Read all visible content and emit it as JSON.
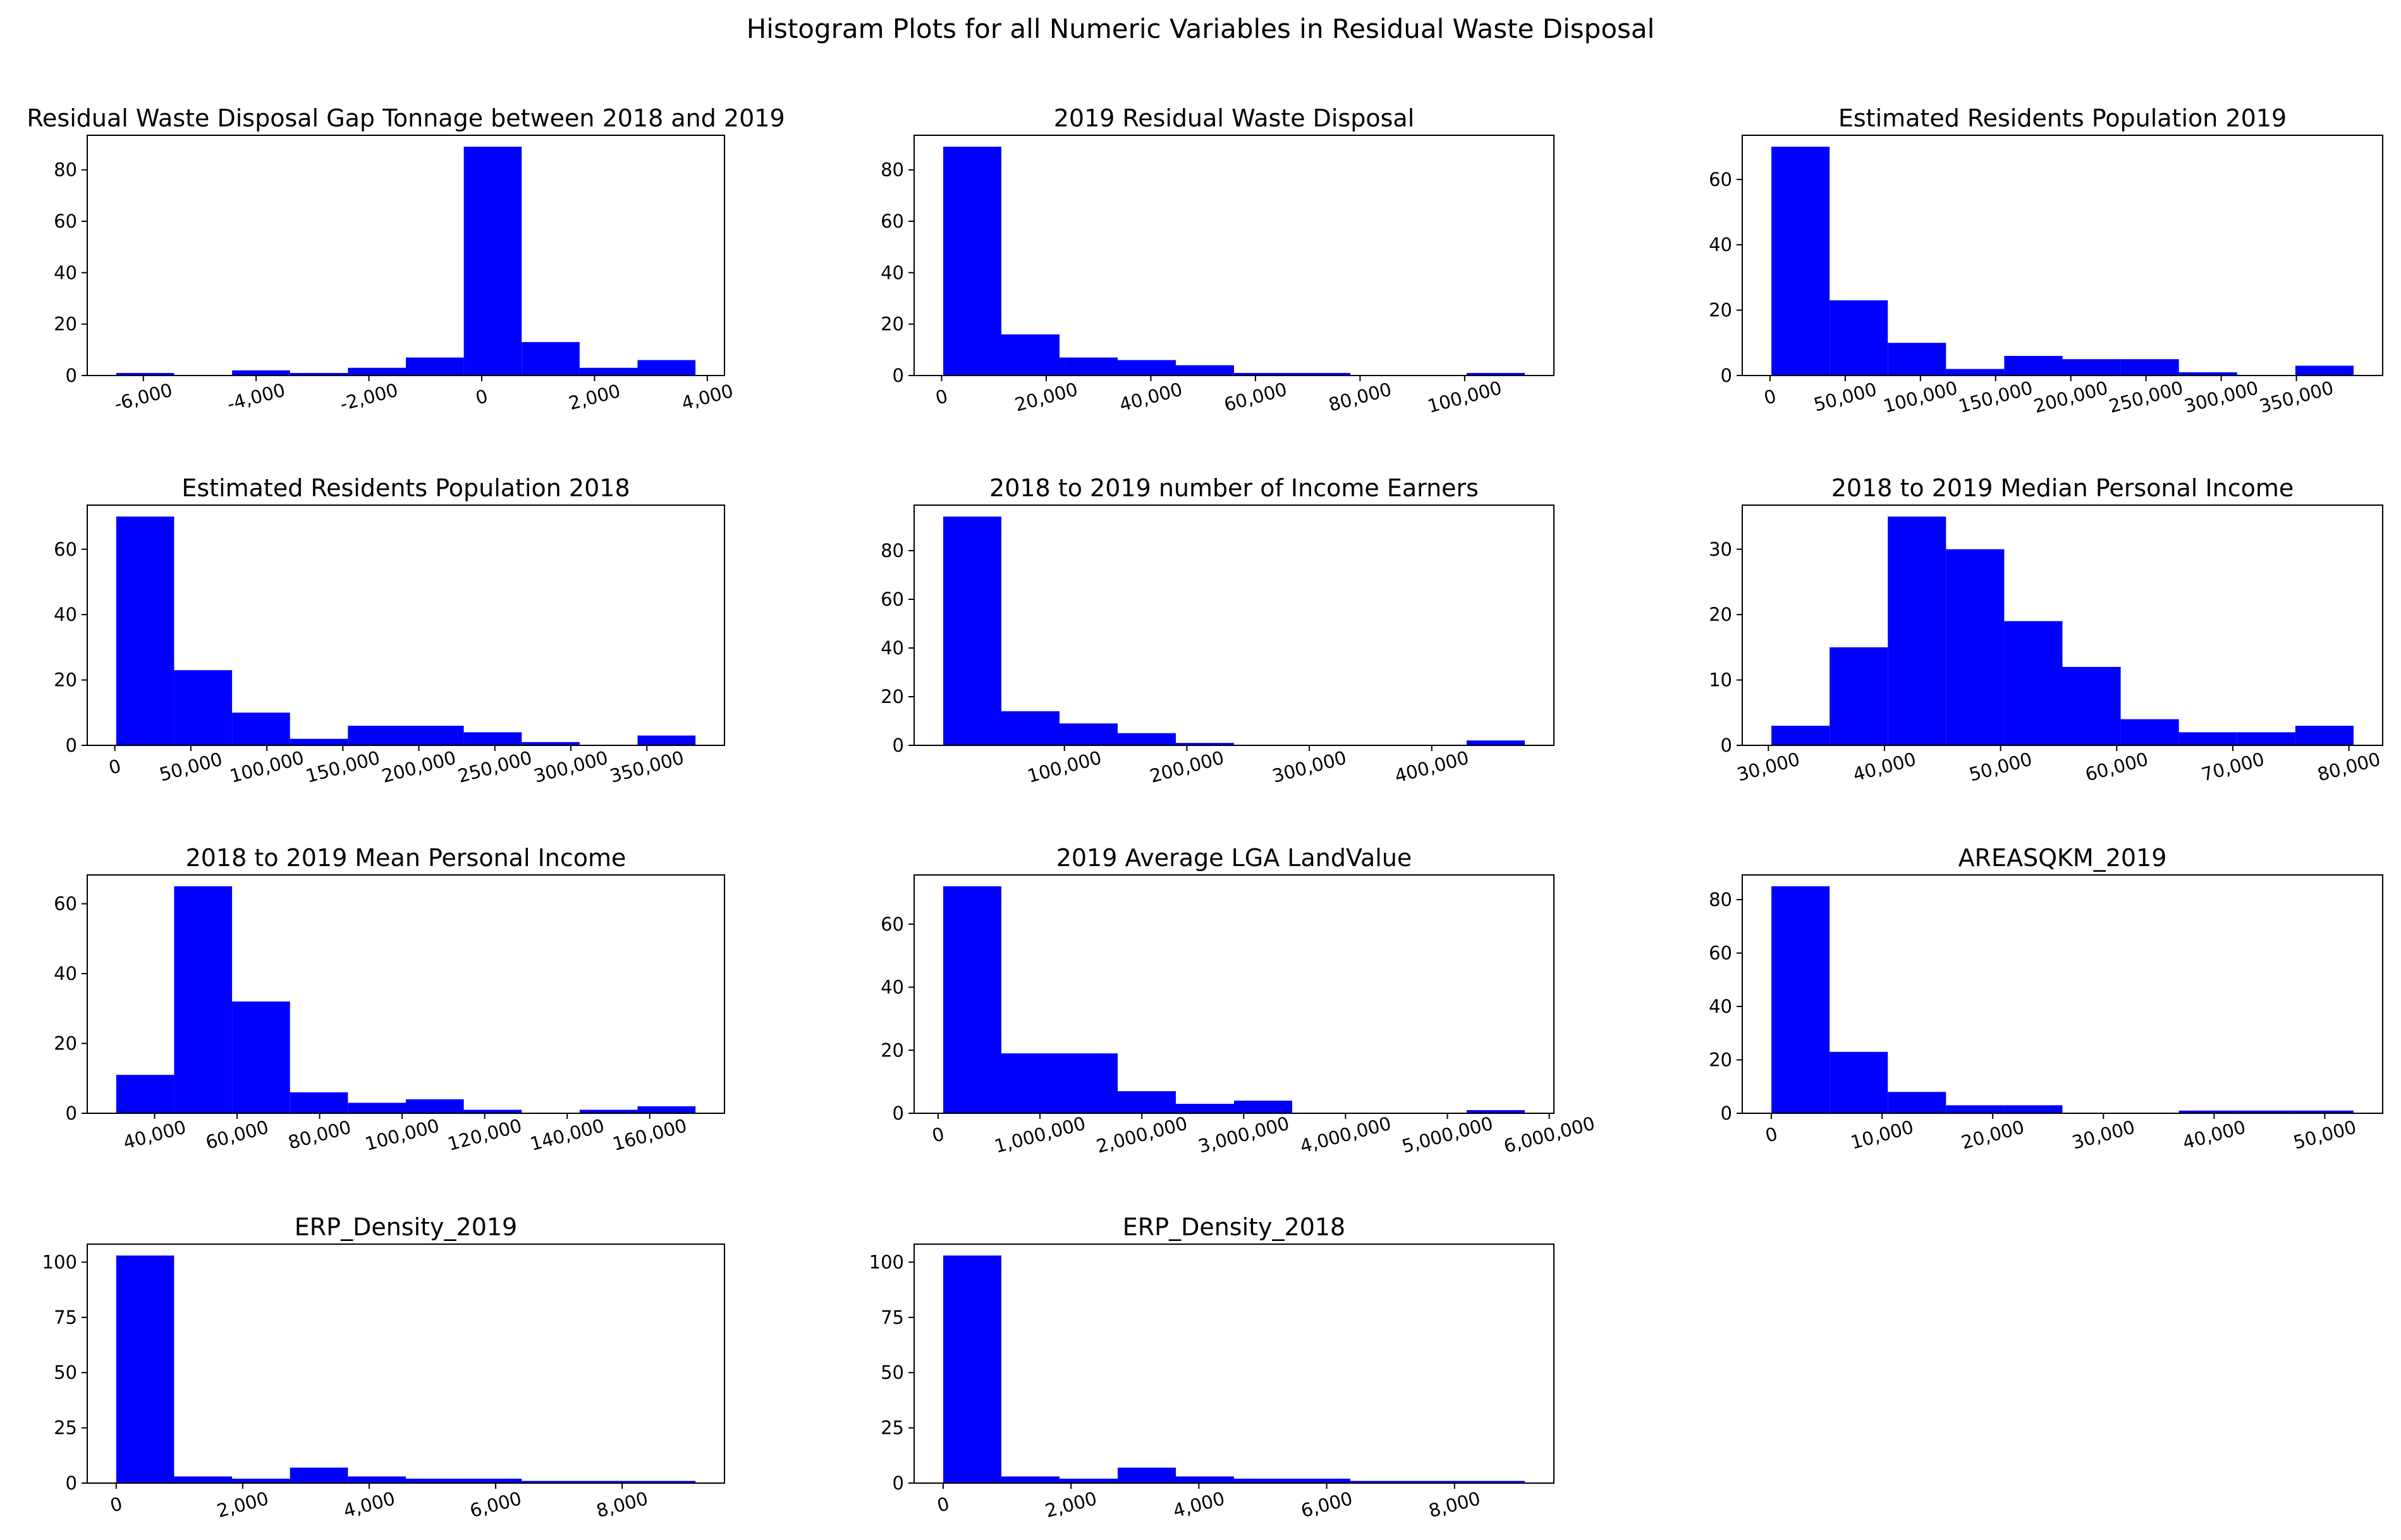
{
  "title": "Histogram Plots for all Numeric Variables in Residual Waste Disposal",
  "chart_data": [
    {
      "type": "histogram",
      "title": "Residual Waste Disposal Gap Tonnage between 2018 and 2019",
      "color": "#0000ff",
      "bins": [
        -6480,
        -5453,
        -4426,
        -3399,
        -2372,
        -1345,
        -318,
        709,
        1736,
        2763,
        3790
      ],
      "values": [
        1,
        0,
        2,
        1,
        3,
        7,
        89,
        13,
        3,
        6
      ],
      "xlim": [
        -6994,
        4304
      ],
      "ylim": [
        0,
        93.45
      ],
      "xticks": [
        {
          "value": -6000,
          "label": "-6,000"
        },
        {
          "value": -4000,
          "label": "-4,000"
        },
        {
          "value": -2000,
          "label": "-2,000"
        },
        0,
        {
          "value": 2000,
          "label": "2,000"
        },
        {
          "value": 4000,
          "label": "4,000"
        }
      ],
      "yticks": [
        0,
        20,
        40,
        60,
        80
      ]
    },
    {
      "type": "histogram",
      "title": "2019 Residual Waste Disposal",
      "color": "#0000ff",
      "bins": [
        300,
        11420,
        22540,
        33660,
        44780,
        55900,
        67020,
        78140,
        89260,
        100380,
        111500
      ],
      "values": [
        89,
        16,
        7,
        6,
        4,
        1,
        1,
        0,
        0,
        1
      ],
      "xlim": [
        -5260,
        117060
      ],
      "ylim": [
        0,
        93.45
      ],
      "xticks": [
        0,
        {
          "value": 20000,
          "label": "20,000"
        },
        {
          "value": 40000,
          "label": "40,000"
        },
        {
          "value": 60000,
          "label": "60,000"
        },
        {
          "value": 80000,
          "label": "80,000"
        },
        {
          "value": 100000,
          "label": "100,000"
        }
      ],
      "yticks": [
        0,
        20,
        40,
        60,
        80
      ]
    },
    {
      "type": "histogram",
      "title": "Estimated Residents Population 2019",
      "color": "#0000ff",
      "bins": [
        900,
        39610,
        78320,
        117030,
        155740,
        194450,
        233160,
        271870,
        310580,
        349290,
        388000
      ],
      "values": [
        70,
        23,
        10,
        2,
        6,
        5,
        5,
        1,
        0,
        3
      ],
      "xlim": [
        -18455,
        407355
      ],
      "ylim": [
        0,
        73.5
      ],
      "xticks": [
        0,
        {
          "value": 50000,
          "label": "50,000"
        },
        {
          "value": 100000,
          "label": "100,000"
        },
        {
          "value": 150000,
          "label": "150,000"
        },
        {
          "value": 200000,
          "label": "200,000"
        },
        {
          "value": 250000,
          "label": "250,000"
        },
        {
          "value": 300000,
          "label": "300,000"
        },
        {
          "value": 350000,
          "label": "350,000"
        }
      ],
      "yticks": [
        0,
        20,
        40,
        60
      ]
    },
    {
      "type": "histogram",
      "title": "Estimated Residents Population 2018",
      "color": "#0000ff",
      "bins": [
        900,
        39010,
        77120,
        115230,
        153340,
        191450,
        229560,
        267670,
        305780,
        343890,
        382000
      ],
      "values": [
        70,
        23,
        10,
        2,
        6,
        6,
        4,
        1,
        0,
        3
      ],
      "xlim": [
        -18155,
        401055
      ],
      "ylim": [
        0,
        73.5
      ],
      "xticks": [
        0,
        {
          "value": 50000,
          "label": "50,000"
        },
        {
          "value": 100000,
          "label": "100,000"
        },
        {
          "value": 150000,
          "label": "150,000"
        },
        {
          "value": 200000,
          "label": "200,000"
        },
        {
          "value": 250000,
          "label": "250,000"
        },
        {
          "value": 300000,
          "label": "300,000"
        },
        {
          "value": 350000,
          "label": "350,000"
        }
      ],
      "yticks": [
        0,
        20,
        40,
        60
      ]
    },
    {
      "type": "histogram",
      "title": "2018 to 2019 number of Income Earners",
      "color": "#0000ff",
      "bins": [
        1000,
        48500,
        96000,
        143500,
        191000,
        238500,
        286000,
        333500,
        381000,
        428500,
        476000
      ],
      "values": [
        94,
        14,
        9,
        5,
        1,
        0,
        0,
        0,
        0,
        2
      ],
      "xlim": [
        -22750,
        499750
      ],
      "ylim": [
        0,
        98.7
      ],
      "xticks": [
        {
          "value": 100000,
          "label": "100,000"
        },
        {
          "value": 200000,
          "label": "200,000"
        },
        {
          "value": 300000,
          "label": "300,000"
        },
        {
          "value": 400000,
          "label": "400,000"
        }
      ],
      "yticks": [
        0,
        20,
        40,
        60,
        80
      ]
    },
    {
      "type": "histogram",
      "title": "2018 to 2019 Median Personal Income",
      "color": "#0000ff",
      "bins": [
        30260,
        35274,
        40288,
        45302,
        50316,
        55330,
        60344,
        65358,
        70372,
        75386,
        80400
      ],
      "values": [
        3,
        15,
        35,
        30,
        19,
        12,
        4,
        2,
        2,
        3
      ],
      "xlim": [
        27753,
        82907
      ],
      "ylim": [
        0,
        36.75
      ],
      "xticks": [
        {
          "value": 30000,
          "label": "30,000"
        },
        {
          "value": 40000,
          "label": "40,000"
        },
        {
          "value": 50000,
          "label": "50,000"
        },
        {
          "value": 60000,
          "label": "60,000"
        },
        {
          "value": 70000,
          "label": "70,000"
        },
        {
          "value": 80000,
          "label": "80,000"
        }
      ],
      "yticks": [
        0,
        10,
        20,
        30
      ]
    },
    {
      "type": "histogram",
      "title": "2018 to 2019 Mean Personal Income",
      "color": "#0000ff",
      "bins": [
        30700,
        44740,
        58780,
        72820,
        86860,
        100900,
        114940,
        128980,
        143020,
        157060,
        171100
      ],
      "values": [
        11,
        65,
        32,
        6,
        3,
        4,
        1,
        0,
        1,
        2
      ],
      "xlim": [
        23680,
        178120
      ],
      "ylim": [
        0,
        68.25
      ],
      "xticks": [
        {
          "value": 40000,
          "label": "40,000"
        },
        {
          "value": 60000,
          "label": "60,000"
        },
        {
          "value": 80000,
          "label": "80,000"
        },
        {
          "value": 100000,
          "label": "100,000"
        },
        {
          "value": 120000,
          "label": "120,000"
        },
        {
          "value": 140000,
          "label": "140,000"
        },
        {
          "value": 160000,
          "label": "160,000"
        }
      ],
      "yticks": [
        0,
        20,
        40,
        60
      ]
    },
    {
      "type": "histogram",
      "title": "2019 Average LGA LandValue",
      "color": "#0000ff",
      "bins": [
        50000,
        621000,
        1192000,
        1763000,
        2334000,
        2905000,
        3476000,
        4047000,
        4618000,
        5189000,
        5760000
      ],
      "values": [
        72,
        19,
        19,
        7,
        3,
        4,
        0,
        0,
        0,
        1
      ],
      "xlim": [
        -235500,
        6045500
      ],
      "ylim": [
        0,
        75.6
      ],
      "xticks": [
        0,
        {
          "value": 1000000,
          "label": "1,000,000"
        },
        {
          "value": 2000000,
          "label": "2,000,000"
        },
        {
          "value": 3000000,
          "label": "3,000,000"
        },
        {
          "value": 4000000,
          "label": "4,000,000"
        },
        {
          "value": 5000000,
          "label": "5,000,000"
        },
        {
          "value": 6000000,
          "label": "6,000,000"
        }
      ],
      "yticks": [
        0,
        20,
        40,
        60
      ]
    },
    {
      "type": "histogram",
      "title": "AREASQKM_2019",
      "color": "#0000ff",
      "bins": [
        0,
        5260,
        10520,
        15780,
        21040,
        26300,
        31560,
        36820,
        42080,
        47340,
        52600
      ],
      "values": [
        85,
        23,
        8,
        3,
        3,
        0,
        0,
        1,
        1,
        1
      ],
      "xlim": [
        -2630,
        55230
      ],
      "ylim": [
        0,
        89.25
      ],
      "xticks": [
        0,
        {
          "value": 10000,
          "label": "10,000"
        },
        {
          "value": 20000,
          "label": "20,000"
        },
        {
          "value": 30000,
          "label": "30,000"
        },
        {
          "value": 40000,
          "label": "40,000"
        },
        {
          "value": 50000,
          "label": "50,000"
        }
      ],
      "yticks": [
        0,
        20,
        40,
        60,
        80
      ]
    },
    {
      "type": "histogram",
      "title": "ERP_Density_2019",
      "color": "#0000ff",
      "bins": [
        0,
        916,
        1832,
        2748,
        3664,
        4580,
        5496,
        6412,
        7328,
        8244,
        9160
      ],
      "values": [
        103,
        3,
        2,
        7,
        3,
        2,
        2,
        1,
        1,
        1
      ],
      "xlim": [
        -458,
        9618
      ],
      "ylim": [
        0,
        108.15
      ],
      "xticks": [
        0,
        {
          "value": 2000,
          "label": "2,000"
        },
        {
          "value": 4000,
          "label": "4,000"
        },
        {
          "value": 6000,
          "label": "6,000"
        },
        {
          "value": 8000,
          "label": "8,000"
        }
      ],
      "yticks": [
        0,
        25,
        50,
        75,
        100
      ]
    },
    {
      "type": "histogram",
      "title": "ERP_Density_2018",
      "color": "#0000ff",
      "bins": [
        0,
        910,
        1820,
        2730,
        3640,
        4550,
        5460,
        6370,
        7280,
        8190,
        9100
      ],
      "values": [
        103,
        3,
        2,
        7,
        3,
        2,
        2,
        1,
        1,
        1
      ],
      "xlim": [
        -455,
        9555
      ],
      "ylim": [
        0,
        108.15
      ],
      "xticks": [
        0,
        {
          "value": 2000,
          "label": "2,000"
        },
        {
          "value": 4000,
          "label": "4,000"
        },
        {
          "value": 6000,
          "label": "6,000"
        },
        {
          "value": 8000,
          "label": "8,000"
        }
      ],
      "yticks": [
        0,
        25,
        50,
        75,
        100
      ]
    }
  ]
}
